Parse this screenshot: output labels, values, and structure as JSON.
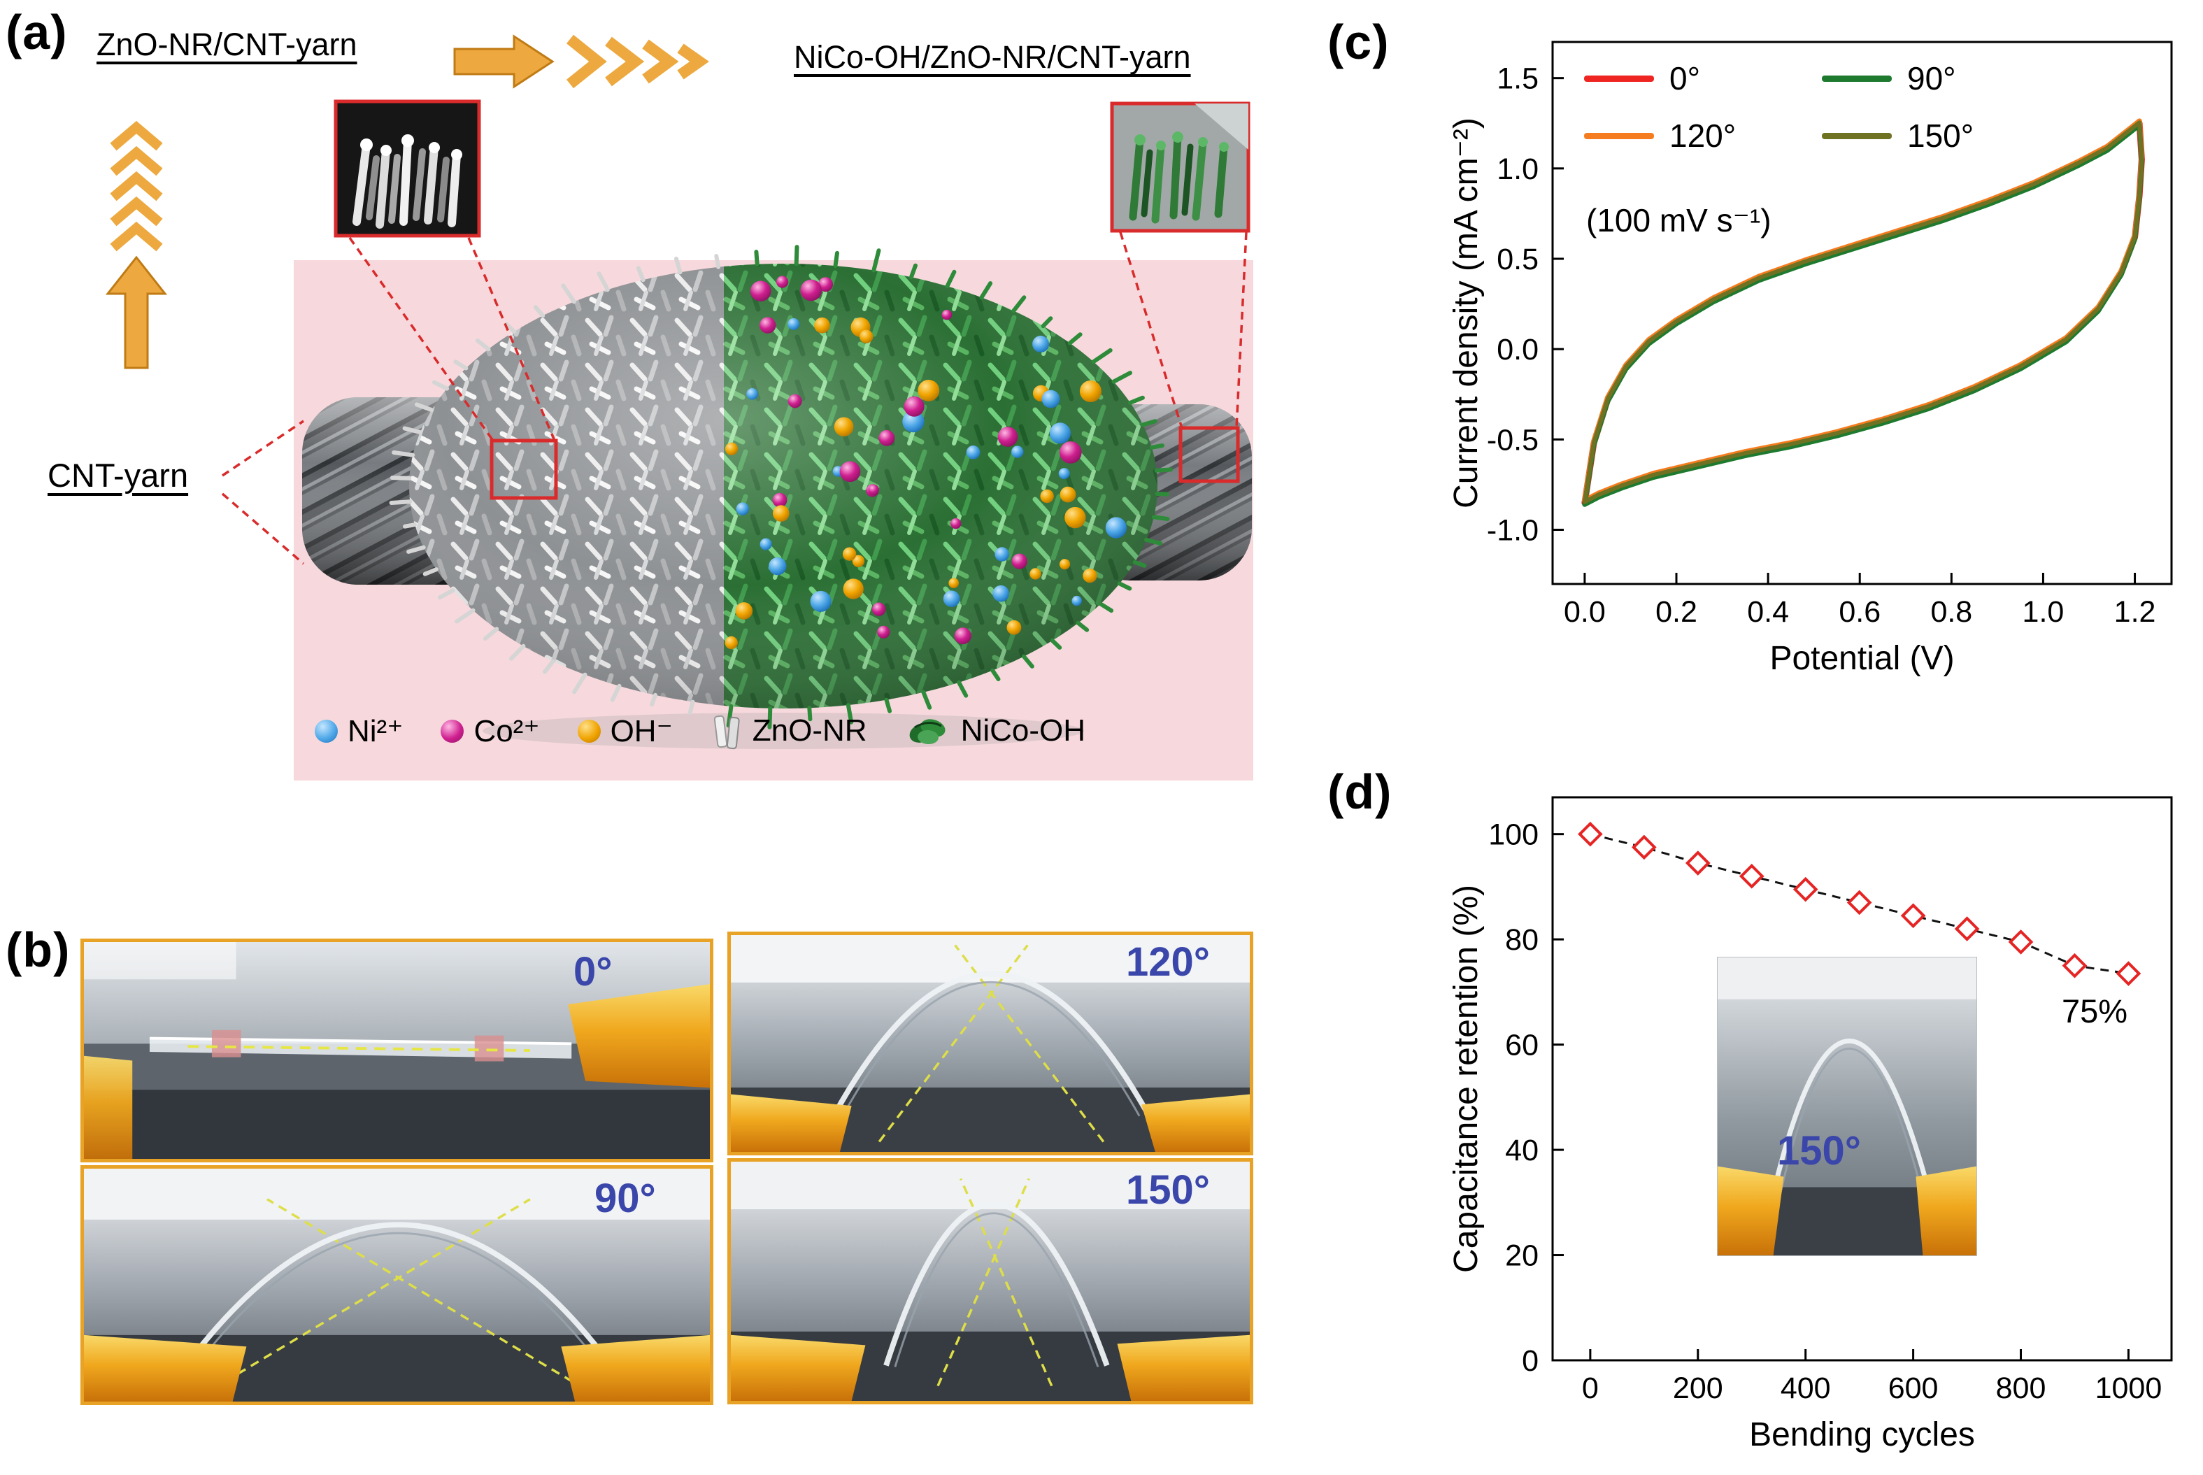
{
  "figure": {
    "panel_a_label": "(a)",
    "panel_b_label": "(b)",
    "panel_c_label": "(c)",
    "panel_d_label": "(d)"
  },
  "panel_a": {
    "title_left": "ZnO-NR/CNT-yarn",
    "title_right": "NiCo-OH/ZnO-NR/CNT-yarn",
    "cnt_yarn_label": "CNT-yarn",
    "background_color": "#f7d9dd",
    "arrow_color": "#eda93f",
    "legend": [
      {
        "name": "ni-ion",
        "label": "Ni²⁺",
        "color_main": "#4fa8e8",
        "color_dark": "#1b6fb8",
        "color_light": "#c5e6ff"
      },
      {
        "name": "co-ion",
        "label": "Co²⁺",
        "color_main": "#cf1f8f",
        "color_dark": "#8e1263",
        "color_light": "#ffb8e4"
      },
      {
        "name": "oh-ion",
        "label": "OH⁻",
        "color_main": "#f0a400",
        "color_dark": "#b87700",
        "color_light": "#ffe08a"
      },
      {
        "name": "zno-nr",
        "label": "ZnO-NR"
      },
      {
        "name": "nico-oh",
        "label": "NiCo-OH",
        "color_main": "#2e8b3a"
      }
    ]
  },
  "panel_b": {
    "border_color": "#e8a225",
    "angle_text_color": "#3a46aa",
    "photos": [
      {
        "name": "photo-0deg",
        "angle_label": "0°"
      },
      {
        "name": "photo-120deg",
        "angle_label": "120°"
      },
      {
        "name": "photo-90deg",
        "angle_label": "90°"
      },
      {
        "name": "photo-150deg",
        "angle_label": "150°"
      }
    ]
  },
  "chart_data": [
    {
      "id": "cv",
      "type": "line",
      "title": "",
      "xlabel": "Potential (V)",
      "ylabel": "Current density (mA cm⁻²)",
      "annotation": "(100 mV s⁻¹)",
      "legend_position": "top-left-inside",
      "xlim": [
        -0.07,
        1.28
      ],
      "ylim": [
        -1.3,
        1.7
      ],
      "xticks": [
        0.0,
        0.2,
        0.4,
        0.6,
        0.8,
        1.0,
        1.2
      ],
      "yticks": [
        -1.0,
        -0.5,
        0.0,
        0.5,
        1.0,
        1.5
      ],
      "x_decimals": 1,
      "y_decimals": 1,
      "legend": [
        {
          "label": "0°",
          "color": "#ee2520"
        },
        {
          "label": "90°",
          "color": "#1e7a2e"
        },
        {
          "label": "120°",
          "color": "#f57c1f"
        },
        {
          "label": "150°",
          "color": "#6e7222"
        }
      ],
      "loop": [
        [
          0.0,
          -0.85
        ],
        [
          0.02,
          -0.52
        ],
        [
          0.05,
          -0.28
        ],
        [
          0.09,
          -0.1
        ],
        [
          0.14,
          0.04
        ],
        [
          0.2,
          0.15
        ],
        [
          0.28,
          0.27
        ],
        [
          0.38,
          0.39
        ],
        [
          0.48,
          0.48
        ],
        [
          0.58,
          0.56
        ],
        [
          0.68,
          0.64
        ],
        [
          0.78,
          0.72
        ],
        [
          0.88,
          0.81
        ],
        [
          0.98,
          0.91
        ],
        [
          1.08,
          1.03
        ],
        [
          1.14,
          1.11
        ],
        [
          1.19,
          1.21
        ],
        [
          1.21,
          1.25
        ],
        [
          1.215,
          1.05
        ],
        [
          1.21,
          0.85
        ],
        [
          1.2,
          0.62
        ],
        [
          1.17,
          0.42
        ],
        [
          1.12,
          0.22
        ],
        [
          1.05,
          0.05
        ],
        [
          0.95,
          -0.1
        ],
        [
          0.85,
          -0.22
        ],
        [
          0.75,
          -0.32
        ],
        [
          0.65,
          -0.4
        ],
        [
          0.55,
          -0.47
        ],
        [
          0.45,
          -0.53
        ],
        [
          0.35,
          -0.58
        ],
        [
          0.25,
          -0.64
        ],
        [
          0.15,
          -0.7
        ],
        [
          0.08,
          -0.76
        ],
        [
          0.03,
          -0.81
        ]
      ],
      "draw": [
        {
          "i": 0,
          "w": 9,
          "dy": 0
        },
        {
          "i": 2,
          "w": 7.5,
          "dy": 0.012
        },
        {
          "i": 1,
          "w": 7,
          "dy": -0.01
        },
        {
          "i": 3,
          "w": 6,
          "dy": 0.004
        }
      ]
    },
    {
      "id": "retention",
      "type": "scatter",
      "title": "",
      "xlabel": "Bending cycles",
      "ylabel": "Capacitance retention (%)",
      "annotation": "75%",
      "inset_label": "150°",
      "xlim": [
        -70,
        1080
      ],
      "ylim": [
        0,
        107
      ],
      "xticks": [
        0,
        200,
        400,
        600,
        800,
        1000
      ],
      "yticks": [
        0,
        20,
        40,
        60,
        80,
        100
      ],
      "x_decimals": 0,
      "y_decimals": 0,
      "marker": "open-diamond",
      "marker_color": "#e62424",
      "line_style": "dashed",
      "x": [
        0,
        100,
        200,
        300,
        400,
        500,
        600,
        700,
        800,
        900,
        1000
      ],
      "y": [
        100,
        97.5,
        94.5,
        92,
        89.5,
        87,
        84.5,
        82,
        79.5,
        75,
        73.5
      ]
    }
  ]
}
